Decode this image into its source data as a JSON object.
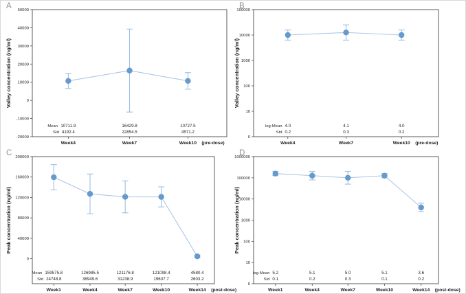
{
  "colors": {
    "point": "#6699cc",
    "line": "#aac7e5",
    "error_bar": "#9dbfe2",
    "axis": "#4a4a4a",
    "text": "#1f1f1f",
    "panel_letter": "#8f8f8f",
    "background": "#ffffff",
    "figure_border": "#d8d8d8"
  },
  "chart_data": [
    {
      "panel_label": "A",
      "type": "line",
      "yscale": "linear",
      "ylabel": "Valley concentration (ng/ml)",
      "ylim": [
        -20000,
        50000
      ],
      "yticks": [
        {
          "value": 50000,
          "label": "50000"
        },
        {
          "value": 40000,
          "label": "40000"
        },
        {
          "value": 30000,
          "label": "30000"
        },
        {
          "value": 20000,
          "label": "20000"
        },
        {
          "value": 10000,
          "label": "10000"
        },
        {
          "value": 0,
          "label": "0"
        },
        {
          "value": -10000,
          "label": "-10000"
        },
        {
          "value": -20000,
          "label": "-20000"
        }
      ],
      "categories": [
        "Week4",
        "Week7",
        "Week10"
      ],
      "axis_note": "(pre-dose)",
      "series": [
        {
          "name": "Mean",
          "values": [
            10711.9,
            16429.8,
            10727.5
          ],
          "errors": [
            4192.4,
            22854.5,
            4571.2
          ]
        }
      ],
      "stat_rows": [
        {
          "label": "Mean",
          "values": [
            "10711.9",
            "16429.8",
            "10727.5"
          ]
        },
        {
          "label": "Std",
          "values": [
            "4192.4",
            "22854.5",
            "4571.2"
          ]
        }
      ]
    },
    {
      "panel_label": "B",
      "type": "line",
      "yscale": "log",
      "ylabel": "Valley concentration (ng/ml)",
      "ymax_exp": 5,
      "yticks": [
        {
          "value": 100000,
          "label": "100000"
        },
        {
          "value": 10000,
          "label": "10000"
        },
        {
          "value": 1000,
          "label": "1000"
        },
        {
          "value": 100,
          "label": "100"
        },
        {
          "value": 10,
          "label": "10"
        },
        {
          "value": 1,
          "label": "0"
        }
      ],
      "categories": [
        "Week4",
        "Week7",
        "Week10"
      ],
      "axis_note": "(pre-dose)",
      "series": [
        {
          "name": "log-Mean",
          "log_means": [
            4.0,
            4.1,
            4.0
          ],
          "log_stds": [
            0.2,
            0.3,
            0.2
          ]
        }
      ],
      "stat_rows": [
        {
          "label": "log-Mean",
          "values": [
            "4.0",
            "4.1",
            "4.0"
          ]
        },
        {
          "label": "Std",
          "values": [
            "0.2",
            "0.3",
            "0.2"
          ]
        }
      ]
    },
    {
      "panel_label": "C",
      "type": "line",
      "yscale": "linear",
      "ylabel": "Peak concentration (ng/ml)",
      "ylim": [
        -49000,
        200000
      ],
      "yticks": [
        {
          "value": 200000,
          "label": "200000"
        },
        {
          "value": 160000,
          "label": "160000"
        },
        {
          "value": 120000,
          "label": "120000"
        },
        {
          "value": 80000,
          "label": "80000"
        },
        {
          "value": 40000,
          "label": "40000"
        },
        {
          "value": 0,
          "label": "0"
        }
      ],
      "categories": [
        "Week1",
        "Week4",
        "Week7",
        "Week10",
        "Week14"
      ],
      "axis_note": "(post-dose)",
      "series": [
        {
          "name": "Mean",
          "values": [
            159575.8,
            126985.5,
            121176.8,
            121098.4,
            4580.4
          ],
          "errors": [
            24748.8,
            38949.6,
            31238.9,
            19637.7,
            2603.2
          ]
        }
      ],
      "stat_rows": [
        {
          "label": "Mean",
          "values": [
            "159575.8",
            "126985.5",
            "121176.8",
            "121098.4",
            "4580.4"
          ]
        },
        {
          "label": "Std",
          "values": [
            "24748.8",
            "38949.6",
            "31238.9",
            "19637.7",
            "2603.2"
          ]
        }
      ]
    },
    {
      "panel_label": "D",
      "type": "line",
      "yscale": "log",
      "ylabel": "Peak concentration (ng/ml)",
      "ymax_exp": 6,
      "yticks": [
        {
          "value": 1000000,
          "label": "1000000"
        },
        {
          "value": 100000,
          "label": "100000"
        },
        {
          "value": 10000,
          "label": "10000"
        },
        {
          "value": 1000,
          "label": "1000"
        },
        {
          "value": 100,
          "label": "100"
        },
        {
          "value": 10,
          "label": "10"
        },
        {
          "value": 1,
          "label": "0"
        }
      ],
      "categories": [
        "Week1",
        "Week4",
        "Week7",
        "Week10",
        "Week14"
      ],
      "axis_note": "(post-dose)",
      "series": [
        {
          "name": "log-Mean",
          "log_means": [
            5.2,
            5.1,
            5.0,
            5.1,
            3.6
          ],
          "log_stds": [
            0.1,
            0.2,
            0.3,
            0.1,
            0.2
          ]
        }
      ],
      "stat_rows": [
        {
          "label": "log-Mean",
          "values": [
            "5.2",
            "5.1",
            "5.0",
            "5.1",
            "3.6"
          ]
        },
        {
          "label": "Std",
          "values": [
            "0.1",
            "0.2",
            "0.3",
            "0.1",
            "0.2"
          ]
        }
      ]
    }
  ]
}
